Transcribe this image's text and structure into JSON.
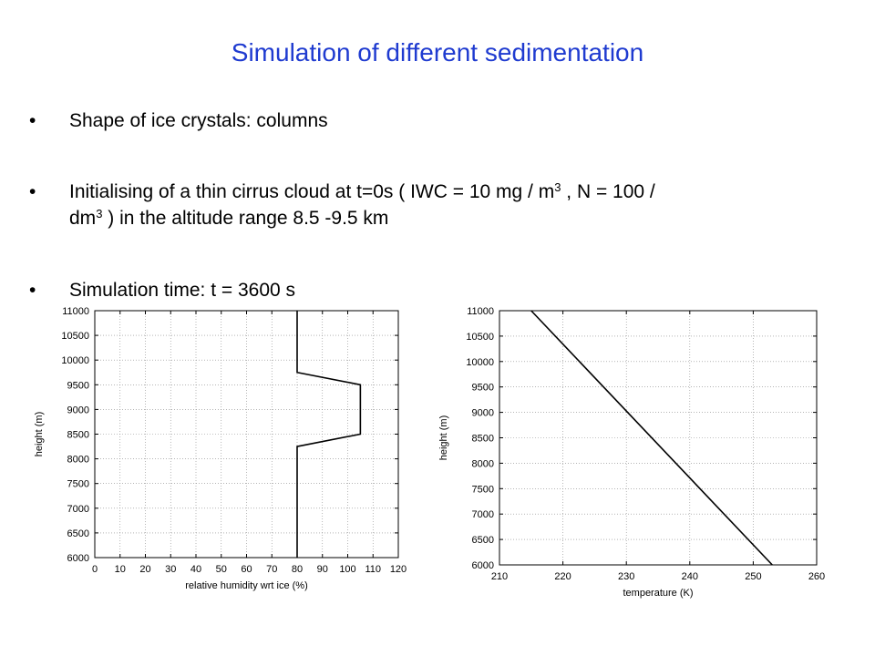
{
  "slide": {
    "title": "Simulation of different sedimentation",
    "bullet_marker": "•",
    "bullet1": "Shape of ice crystals: columns",
    "bullet2": {
      "part1": "Initialising of a thin cirrus cloud at t=0s ( IWC = 10 mg / m",
      "sup1": "3",
      "part2": " , N = 100 /",
      "part3": "dm",
      "sup2": "3",
      "part4": "  ) in the altitude range 8.5 -9.5 km"
    },
    "bullet3": "Simulation time: t = 3600 s"
  },
  "chart_data": [
    {
      "type": "line",
      "xlabel": "relative humidity wrt ice (%)",
      "ylabel": "height (m)",
      "xlim": [
        0,
        120
      ],
      "ylim": [
        6000,
        11000
      ],
      "xticks": [
        "0",
        "10",
        "20",
        "30",
        "40",
        "50",
        "60",
        "70",
        "80",
        "90",
        "100",
        "110",
        "120"
      ],
      "yticks": [
        "6000",
        "6500",
        "7000",
        "7500",
        "8000",
        "8500",
        "9000",
        "9500",
        "10000",
        "10500",
        "11000"
      ],
      "grid": true,
      "series": [
        {
          "x": [
            80,
            80,
            105,
            105,
            80,
            80
          ],
          "y": [
            6000,
            8250,
            8500,
            9500,
            9750,
            11000
          ]
        }
      ]
    },
    {
      "type": "line",
      "xlabel": "temperature (K)",
      "ylabel": "height (m)",
      "xlim": [
        210,
        260
      ],
      "ylim": [
        6000,
        11000
      ],
      "xticks": [
        "210",
        "220",
        "230",
        "240",
        "250",
        "260"
      ],
      "yticks": [
        "6000",
        "6500",
        "7000",
        "7500",
        "8000",
        "8500",
        "9000",
        "9500",
        "10000",
        "10500",
        "11000"
      ],
      "grid": true,
      "series": [
        {
          "x": [
            215,
            253
          ],
          "y": [
            11000,
            6000
          ]
        }
      ]
    }
  ]
}
